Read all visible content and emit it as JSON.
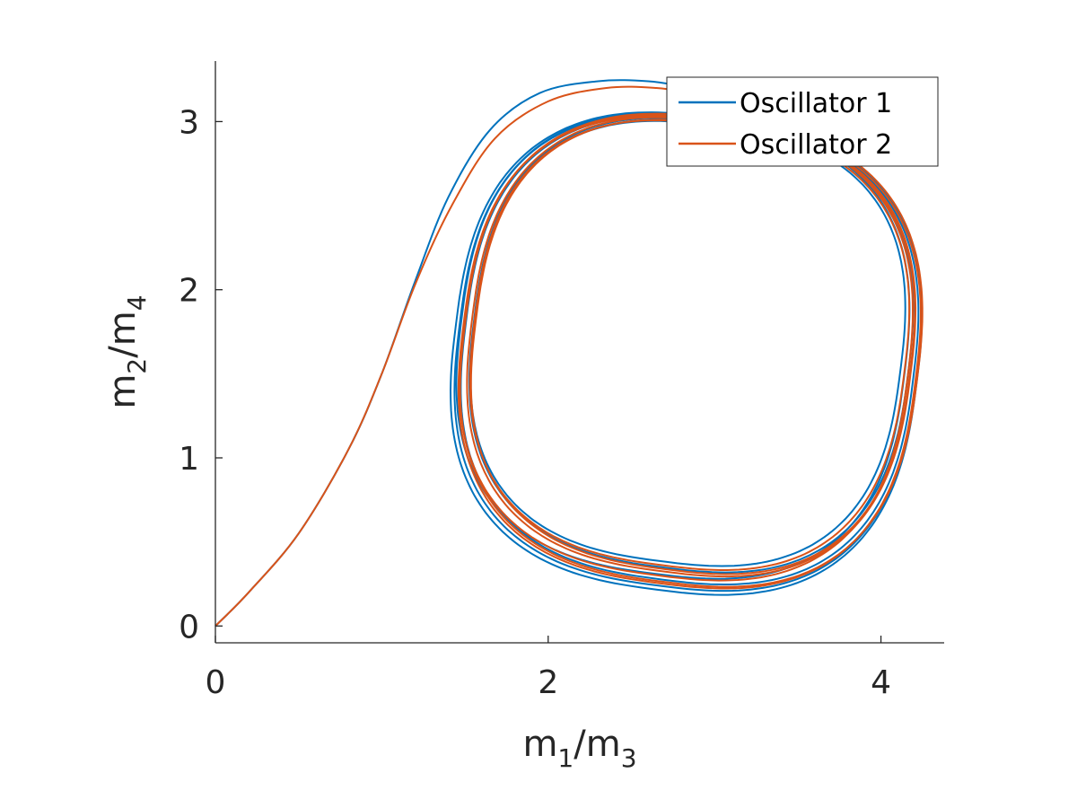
{
  "chart_data": {
    "type": "line",
    "title": "",
    "xlabel": {
      "base1": "m",
      "sub1": "1",
      "sep": "/",
      "base2": "m",
      "sub2": "3"
    },
    "ylabel": {
      "base1": "m",
      "sub1": "2",
      "sep": "/",
      "base2": "m",
      "sub2": "4"
    },
    "xlim": [
      0,
      4.38
    ],
    "ylim": [
      -0.1,
      3.36
    ],
    "xticks": [
      0,
      2,
      4
    ],
    "yticks": [
      0,
      1,
      2,
      3
    ],
    "xtick_labels": [
      "0",
      "2",
      "4"
    ],
    "ytick_labels": [
      "0",
      "1",
      "2",
      "3"
    ],
    "grid": false,
    "legend_position": "top-right",
    "limit_cycle": {
      "cx": 2.83,
      "cy": 1.64,
      "rx": 1.43,
      "ry": 1.45,
      "tilt_deg": -20
    },
    "series": [
      {
        "name": "Oscillator 1",
        "color": "#0072BD",
        "transient": [
          [
            0,
            0
          ],
          [
            0.2,
            0.2
          ],
          [
            0.5,
            0.55
          ],
          [
            0.8,
            1.05
          ],
          [
            1.0,
            1.5
          ],
          [
            1.2,
            2.05
          ],
          [
            1.4,
            2.55
          ],
          [
            1.65,
            2.95
          ],
          [
            1.95,
            3.17
          ],
          [
            2.3,
            3.24
          ],
          [
            2.6,
            3.24
          ],
          [
            2.8,
            3.21
          ],
          [
            2.95,
            3.18
          ]
        ],
        "cycles": [
          {
            "scale": 1.03,
            "phase": 0.0,
            "dx": 0.0,
            "dy": -0.02
          },
          {
            "scale": 1.0,
            "phase": 0.5,
            "dx": 0.02,
            "dy": 0.0
          },
          {
            "scale": 0.97,
            "phase": 1.0,
            "dx": 0.03,
            "dy": 0.03
          },
          {
            "scale": 0.95,
            "phase": 1.5,
            "dx": 0.01,
            "dy": 0.04
          },
          {
            "scale": 0.99,
            "phase": 2.0,
            "dx": -0.02,
            "dy": 0.02
          },
          {
            "scale": 1.02,
            "phase": 2.5,
            "dx": 0.01,
            "dy": -0.01
          }
        ]
      },
      {
        "name": "Oscillator 2",
        "color": "#D95319",
        "transient": [
          [
            0,
            0
          ],
          [
            0.2,
            0.2
          ],
          [
            0.5,
            0.55
          ],
          [
            0.8,
            1.05
          ],
          [
            1.0,
            1.5
          ],
          [
            1.2,
            2.03
          ],
          [
            1.42,
            2.5
          ],
          [
            1.68,
            2.9
          ],
          [
            2.0,
            3.12
          ],
          [
            2.35,
            3.2
          ],
          [
            2.65,
            3.2
          ],
          [
            2.85,
            3.17
          ],
          [
            3.0,
            3.14
          ]
        ],
        "cycles": [
          {
            "scale": 1.01,
            "phase": 0.25,
            "dx": 0.02,
            "dy": -0.01
          },
          {
            "scale": 0.98,
            "phase": 0.75,
            "dx": 0.03,
            "dy": 0.02
          },
          {
            "scale": 0.96,
            "phase": 1.25,
            "dx": 0.02,
            "dy": 0.03
          },
          {
            "scale": 0.99,
            "phase": 1.75,
            "dx": 0.0,
            "dy": 0.01
          },
          {
            "scale": 1.01,
            "phase": 2.25,
            "dx": 0.03,
            "dy": 0.0
          },
          {
            "scale": 0.97,
            "phase": 2.75,
            "dx": 0.04,
            "dy": 0.02
          }
        ]
      }
    ]
  }
}
